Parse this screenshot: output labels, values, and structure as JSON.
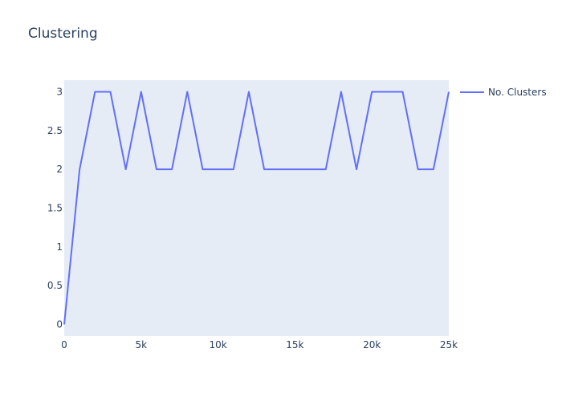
{
  "chart_data": {
    "type": "line",
    "title": "Clustering",
    "xlabel": "",
    "ylabel": "",
    "xlim": [
      0,
      25000
    ],
    "ylim": [
      -0.15,
      3.15
    ],
    "x_ticks": [
      0,
      5000,
      10000,
      15000,
      20000,
      25000
    ],
    "x_tick_labels": [
      "0",
      "5k",
      "10k",
      "15k",
      "20k",
      "25k"
    ],
    "y_ticks": [
      0,
      0.5,
      1,
      1.5,
      2,
      2.5,
      3
    ],
    "y_tick_labels": [
      "0",
      "0.5",
      "1",
      "1.5",
      "2",
      "2.5",
      "3"
    ],
    "grid": false,
    "legend_position": "top-right",
    "colors": {
      "plot_bg": "#e5ecf6",
      "line": "#636efa",
      "text": "#2a3f5f"
    },
    "series": [
      {
        "name": "No. Clusters",
        "x": [
          0,
          1000,
          2000,
          3000,
          4000,
          5000,
          6000,
          7000,
          8000,
          9000,
          10000,
          11000,
          12000,
          13000,
          14000,
          15000,
          16000,
          17000,
          18000,
          19000,
          20000,
          21000,
          22000,
          23000,
          24000,
          25000
        ],
        "values": [
          0,
          2,
          3,
          3,
          2,
          3,
          2,
          2,
          3,
          2,
          2,
          2,
          3,
          2,
          2,
          2,
          2,
          2,
          3,
          2,
          3,
          3,
          3,
          2,
          2,
          3
        ]
      }
    ]
  }
}
